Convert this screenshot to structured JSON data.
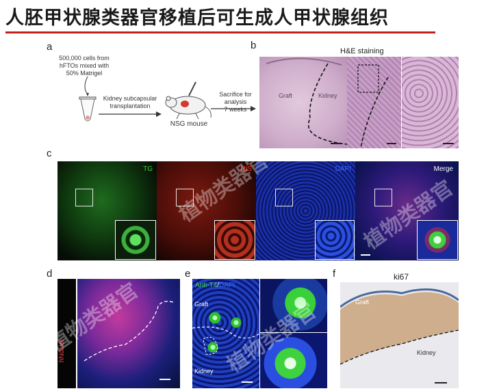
{
  "title": "人胚甲状腺类器官移植后可生成人甲状腺组织",
  "panels": {
    "a": {
      "label": "a",
      "cells_text": [
        "500,000 cells from",
        "hFTOs mixed with",
        "50% Matrigel"
      ],
      "step1_text": [
        "Kidney subcapsular",
        "transplantation"
      ],
      "mouse_label": "NSG mouse",
      "step2_text": [
        "Sacrifice for",
        "analysis",
        "7 weeks"
      ]
    },
    "b": {
      "label": "b",
      "heading": "H&E staining",
      "graft_label": "Graft",
      "kidney_label": "Kidney"
    },
    "c": {
      "label": "c",
      "channels": [
        {
          "name": "TG",
          "color": "#3fd23f"
        },
        {
          "name": "NIS",
          "color": "#ff3b2a"
        },
        {
          "name": "DAPI",
          "color": "#3a6cff"
        },
        {
          "name": "Merge",
          "color": "#ffffff"
        }
      ]
    },
    "d": {
      "label": "d",
      "side_label": "hNuclei"
    },
    "e": {
      "label": "e",
      "stain_label": "Anti-T4",
      "stain_sep": "/",
      "stain_label2": "DAPI",
      "graft_label": "Graft",
      "kidney_label": "Kidney"
    },
    "f": {
      "label": "f",
      "heading": "ki67",
      "graft_label": "Graft",
      "kidney_label": "Kidney"
    }
  },
  "watermark": "植物类器官",
  "colors": {
    "title_underline": "#c0201c",
    "he_stain": "#c9a4c8",
    "fluor_bg": "#050505"
  }
}
